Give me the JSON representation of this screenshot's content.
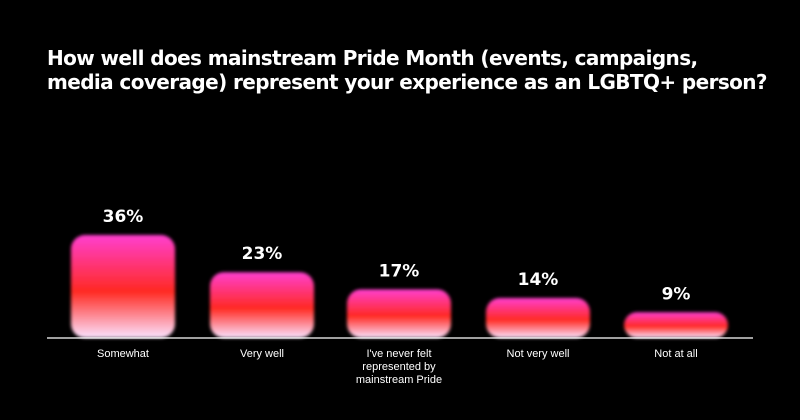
{
  "title": "How well does mainstream Pride Month (events, campaigns, media coverage) represent your experience as an LGBTQ+ person?",
  "colors": {
    "background": "#000000",
    "bar_top": "#ff3fd0",
    "bar_mid": "#ff2a22",
    "bar_bottom": "#fbe3ff",
    "baseline": "#ffffff",
    "text": "#ffffff"
  },
  "chart_data": {
    "type": "bar",
    "title": "How well does mainstream Pride Month (events, campaigns, media coverage) represent your experience as an LGBTQ+ person?",
    "categories": [
      [
        "Somewhat"
      ],
      [
        "Very well"
      ],
      [
        "I've never felt",
        "represented by",
        "mainstream Pride"
      ],
      [
        "Not very well"
      ],
      [
        "Not at all"
      ]
    ],
    "values": [
      36,
      23,
      17,
      14,
      9
    ],
    "value_labels": [
      "36%",
      "23%",
      "17%",
      "14%",
      "9%"
    ],
    "unit": "%",
    "ylim": [
      0,
      36
    ],
    "grid": false,
    "legend": "none"
  }
}
